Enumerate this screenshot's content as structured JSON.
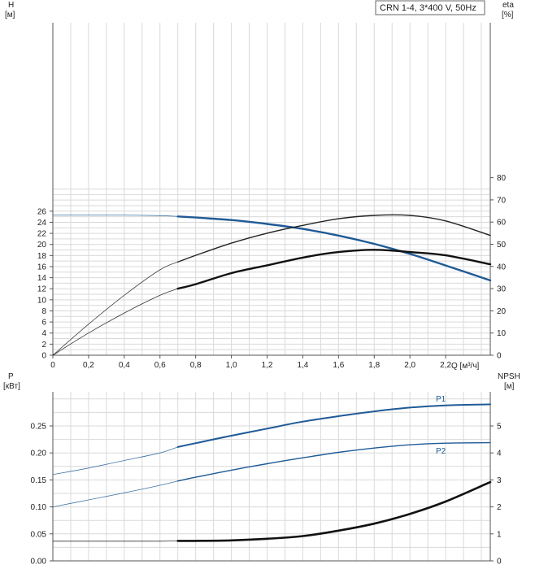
{
  "chart_data": [
    {
      "panel": "head-efficiency",
      "type": "line",
      "title": "CRN 1-4, 3*400 V, 50Hz",
      "xlabel": "Q [м³/ч]",
      "ylabel_left": "H",
      "ylabel_left_unit": "[м]",
      "ylabel_right": "eta",
      "ylabel_right_unit": "[%]",
      "xlim": [
        0,
        2.45
      ],
      "ylim_left": [
        0,
        30
      ],
      "ylim_right": [
        0,
        150
      ],
      "x_ticks": [
        "0",
        "0,2",
        "0,4",
        "0,6",
        "0,8",
        "1,0",
        "1,2",
        "1,4",
        "1,6",
        "1,8",
        "2,0",
        "2,2"
      ],
      "y_ticks_left": [
        "0",
        "2",
        "4",
        "6",
        "8",
        "10",
        "12",
        "14",
        "16",
        "18",
        "20",
        "22",
        "24",
        "26"
      ],
      "y_ticks_right": [
        "0",
        "10",
        "20",
        "30",
        "40",
        "50",
        "60",
        "70",
        "80"
      ],
      "grid": true,
      "series": [
        {
          "axis": "left",
          "color": "#1f5a96",
          "op_range": [
            0.7,
            2.45
          ],
          "x": [
            0,
            0.2,
            0.4,
            0.6,
            0.7,
            0.8,
            1.0,
            1.2,
            1.4,
            1.6,
            1.8,
            2.0,
            2.2,
            2.45
          ],
          "y": [
            25.3,
            25.3,
            25.3,
            25.2,
            25.05,
            24.85,
            24.4,
            23.7,
            22.8,
            21.6,
            20.1,
            18.3,
            16.2,
            13.5
          ]
        },
        {
          "axis": "right",
          "color": "#222222",
          "op_range": [
            0.7,
            2.45
          ],
          "x": [
            0,
            0.2,
            0.4,
            0.6,
            0.7,
            0.8,
            1.0,
            1.2,
            1.4,
            1.6,
            1.8,
            2.0,
            2.2,
            2.45
          ],
          "y": [
            0,
            14,
            27,
            38.5,
            42,
            45,
            50.5,
            55,
            58.5,
            61.5,
            63,
            63,
            60.5,
            54
          ]
        },
        {
          "axis": "right",
          "color": "#111111",
          "op_range": [
            0.7,
            2.45
          ],
          "x": [
            0,
            0.2,
            0.4,
            0.6,
            0.7,
            0.8,
            1.0,
            1.2,
            1.4,
            1.6,
            1.8,
            2.0,
            2.2,
            2.45
          ],
          "y": [
            0,
            10,
            19,
            27,
            30,
            32,
            37,
            40.5,
            44,
            46.5,
            47.5,
            46.5,
            45,
            41
          ]
        }
      ]
    },
    {
      "panel": "power-npsh",
      "type": "line",
      "ylabel_left": "P",
      "ylabel_left_unit": "[кВт]",
      "ylabel_right": "NPSH",
      "ylabel_right_unit": "[м]",
      "xlim": [
        0,
        2.45
      ],
      "ylim_left": [
        0,
        0.3
      ],
      "ylim_right": [
        0,
        6
      ],
      "y_ticks_left": [
        "0.00",
        "0.05",
        "0.10",
        "0.15",
        "0.20",
        "0.25"
      ],
      "y_ticks_right": [
        "0",
        "1",
        "2",
        "3",
        "4",
        "5"
      ],
      "grid": true,
      "series": [
        {
          "name": "P1",
          "axis": "left",
          "color": "#1f5a96",
          "op_range": [
            0.7,
            2.45
          ],
          "x": [
            0,
            0.2,
            0.4,
            0.6,
            0.7,
            0.8,
            1.0,
            1.2,
            1.4,
            1.6,
            1.8,
            2.0,
            2.2,
            2.45
          ],
          "y": [
            0.16,
            0.172,
            0.186,
            0.2,
            0.211,
            0.218,
            0.232,
            0.245,
            0.258,
            0.268,
            0.277,
            0.284,
            0.288,
            0.29
          ]
        },
        {
          "name": "P2",
          "axis": "left",
          "color": "#1f5a96",
          "op_range": [
            0.7,
            2.45
          ],
          "x": [
            0,
            0.2,
            0.4,
            0.6,
            0.7,
            0.8,
            1.0,
            1.2,
            1.4,
            1.6,
            1.8,
            2.0,
            2.2,
            2.45
          ],
          "y": [
            0.1,
            0.113,
            0.126,
            0.14,
            0.148,
            0.155,
            0.168,
            0.18,
            0.191,
            0.201,
            0.209,
            0.215,
            0.218,
            0.219
          ]
        },
        {
          "axis": "right",
          "color": "#111111",
          "op_range": [
            0.7,
            2.45
          ],
          "x": [
            0,
            0.2,
            0.4,
            0.6,
            0.7,
            0.8,
            1.0,
            1.2,
            1.4,
            1.6,
            1.8,
            2.0,
            2.2,
            2.45
          ],
          "y": [
            0.73,
            0.73,
            0.73,
            0.73,
            0.74,
            0.74,
            0.76,
            0.82,
            0.92,
            1.12,
            1.38,
            1.74,
            2.2,
            2.92
          ]
        }
      ]
    }
  ]
}
